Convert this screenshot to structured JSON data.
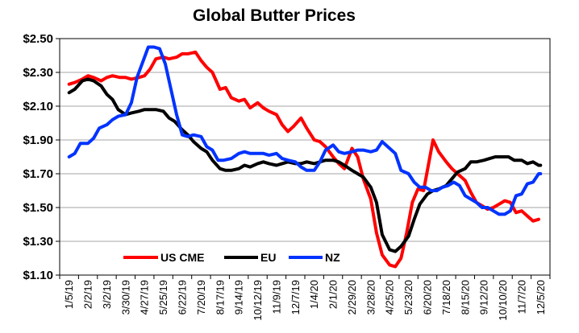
{
  "chart_data": {
    "type": "line",
    "title": "Global Butter Prices",
    "xlabel": "",
    "ylabel": "",
    "ylim": [
      1.1,
      2.5
    ],
    "ytick_values": [
      1.1,
      1.3,
      1.5,
      1.7,
      1.9,
      2.1,
      2.3,
      2.5
    ],
    "ytick_labels": [
      "$1.10",
      "$1.30",
      "$1.50",
      "$1.70",
      "$1.90",
      "$2.10",
      "$2.30",
      "$2.50"
    ],
    "x_labels": [
      "1/5/19",
      "2/2/19",
      "3/2/19",
      "3/30/19",
      "4/27/19",
      "5/25/19",
      "6/22/19",
      "7/20/19",
      "8/17/19",
      "9/14/19",
      "10/12/19",
      "11/9/19",
      "12/7/19",
      "1/4/20",
      "2/1/20",
      "2/29/20",
      "3/28/20",
      "4/25/20",
      "5/23/20",
      "6/20/20",
      "7/18/20",
      "8/15/20",
      "9/12/20",
      "10/10/20",
      "11/7/20",
      "12/5/20"
    ],
    "grid": true,
    "legend": {
      "position": "bottom-left",
      "entries": [
        "US CME",
        "EU",
        "NZ"
      ]
    },
    "series": [
      {
        "name": "US CME",
        "color": "#ff0000",
        "points": [
          [
            0,
            2.23
          ],
          [
            0.3,
            2.24
          ],
          [
            0.7,
            2.26
          ],
          [
            1.0,
            2.28
          ],
          [
            1.3,
            2.27
          ],
          [
            1.7,
            2.25
          ],
          [
            2.0,
            2.27
          ],
          [
            2.3,
            2.28
          ],
          [
            2.7,
            2.27
          ],
          [
            3.0,
            2.27
          ],
          [
            3.3,
            2.26
          ],
          [
            3.7,
            2.27
          ],
          [
            4.0,
            2.28
          ],
          [
            4.3,
            2.32
          ],
          [
            4.6,
            2.38
          ],
          [
            5.0,
            2.39
          ],
          [
            5.3,
            2.38
          ],
          [
            5.7,
            2.39
          ],
          [
            6.0,
            2.41
          ],
          [
            6.3,
            2.41
          ],
          [
            6.7,
            2.42
          ],
          [
            7.0,
            2.37
          ],
          [
            7.3,
            2.33
          ],
          [
            7.6,
            2.3
          ],
          [
            8.0,
            2.2
          ],
          [
            8.3,
            2.21
          ],
          [
            8.6,
            2.15
          ],
          [
            9.0,
            2.13
          ],
          [
            9.3,
            2.14
          ],
          [
            9.6,
            2.09
          ],
          [
            10.0,
            2.12
          ],
          [
            10.3,
            2.09
          ],
          [
            10.6,
            2.07
          ],
          [
            11.0,
            2.05
          ],
          [
            11.3,
            1.99
          ],
          [
            11.6,
            1.95
          ],
          [
            11.9,
            1.98
          ],
          [
            12.3,
            2.03
          ],
          [
            12.6,
            1.97
          ],
          [
            13.0,
            1.9
          ],
          [
            13.3,
            1.89
          ],
          [
            13.6,
            1.86
          ],
          [
            14.0,
            1.8
          ],
          [
            14.3,
            1.76
          ],
          [
            14.6,
            1.73
          ],
          [
            15.0,
            1.85
          ],
          [
            15.3,
            1.8
          ],
          [
            15.6,
            1.67
          ],
          [
            16.0,
            1.55
          ],
          [
            16.3,
            1.35
          ],
          [
            16.6,
            1.22
          ],
          [
            17.0,
            1.16
          ],
          [
            17.3,
            1.15
          ],
          [
            17.6,
            1.2
          ],
          [
            17.9,
            1.35
          ],
          [
            18.2,
            1.53
          ],
          [
            18.5,
            1.61
          ],
          [
            18.8,
            1.6
          ],
          [
            19.0,
            1.72
          ],
          [
            19.3,
            1.9
          ],
          [
            19.6,
            1.83
          ],
          [
            20.0,
            1.77
          ],
          [
            20.3,
            1.73
          ],
          [
            20.6,
            1.7
          ],
          [
            21.0,
            1.66
          ],
          [
            21.3,
            1.59
          ],
          [
            21.6,
            1.53
          ],
          [
            21.9,
            1.51
          ],
          [
            22.2,
            1.49
          ],
          [
            22.5,
            1.5
          ],
          [
            22.8,
            1.52
          ],
          [
            23.1,
            1.54
          ],
          [
            23.4,
            1.53
          ],
          [
            23.7,
            1.47
          ],
          [
            24.0,
            1.48
          ],
          [
            24.3,
            1.45
          ],
          [
            24.6,
            1.42
          ],
          [
            24.9,
            1.43
          ]
        ]
      },
      {
        "name": "EU",
        "color": "#000000",
        "points": [
          [
            0,
            2.18
          ],
          [
            0.3,
            2.2
          ],
          [
            0.7,
            2.25
          ],
          [
            1.0,
            2.26
          ],
          [
            1.3,
            2.25
          ],
          [
            1.7,
            2.22
          ],
          [
            2.0,
            2.17
          ],
          [
            2.3,
            2.14
          ],
          [
            2.6,
            2.08
          ],
          [
            3.0,
            2.05
          ],
          [
            3.3,
            2.06
          ],
          [
            3.7,
            2.07
          ],
          [
            4.0,
            2.08
          ],
          [
            4.3,
            2.08
          ],
          [
            4.6,
            2.08
          ],
          [
            5.0,
            2.07
          ],
          [
            5.3,
            2.03
          ],
          [
            5.6,
            2.01
          ],
          [
            6.0,
            1.96
          ],
          [
            6.3,
            1.93
          ],
          [
            6.6,
            1.89
          ],
          [
            7.0,
            1.85
          ],
          [
            7.3,
            1.83
          ],
          [
            7.6,
            1.78
          ],
          [
            8.0,
            1.73
          ],
          [
            8.3,
            1.72
          ],
          [
            8.6,
            1.72
          ],
          [
            9.0,
            1.73
          ],
          [
            9.3,
            1.75
          ],
          [
            9.6,
            1.74
          ],
          [
            10.0,
            1.76
          ],
          [
            10.3,
            1.77
          ],
          [
            10.6,
            1.76
          ],
          [
            11.0,
            1.75
          ],
          [
            11.3,
            1.76
          ],
          [
            11.6,
            1.77
          ],
          [
            12.0,
            1.76
          ],
          [
            12.3,
            1.76
          ],
          [
            12.6,
            1.77
          ],
          [
            13.0,
            1.76
          ],
          [
            13.3,
            1.77
          ],
          [
            13.6,
            1.78
          ],
          [
            14.0,
            1.78
          ],
          [
            14.3,
            1.77
          ],
          [
            14.6,
            1.75
          ],
          [
            15.0,
            1.72
          ],
          [
            15.3,
            1.7
          ],
          [
            15.6,
            1.68
          ],
          [
            16.0,
            1.62
          ],
          [
            16.3,
            1.53
          ],
          [
            16.6,
            1.34
          ],
          [
            17.0,
            1.25
          ],
          [
            17.3,
            1.24
          ],
          [
            17.6,
            1.27
          ],
          [
            18.0,
            1.33
          ],
          [
            18.3,
            1.43
          ],
          [
            18.6,
            1.52
          ],
          [
            19.0,
            1.58
          ],
          [
            19.3,
            1.6
          ],
          [
            19.6,
            1.61
          ],
          [
            20.0,
            1.63
          ],
          [
            20.3,
            1.67
          ],
          [
            20.6,
            1.71
          ],
          [
            21.0,
            1.73
          ],
          [
            21.3,
            1.77
          ],
          [
            21.6,
            1.77
          ],
          [
            22.0,
            1.78
          ],
          [
            22.3,
            1.79
          ],
          [
            22.6,
            1.8
          ],
          [
            23.0,
            1.8
          ],
          [
            23.3,
            1.8
          ],
          [
            23.6,
            1.78
          ],
          [
            24.0,
            1.78
          ],
          [
            24.3,
            1.76
          ],
          [
            24.6,
            1.77
          ],
          [
            24.9,
            1.75
          ],
          [
            25.0,
            1.75
          ]
        ]
      },
      {
        "name": "NZ",
        "color": "#0033ff",
        "points": [
          [
            0,
            1.8
          ],
          [
            0.3,
            1.82
          ],
          [
            0.6,
            1.88
          ],
          [
            1.0,
            1.88
          ],
          [
            1.3,
            1.91
          ],
          [
            1.6,
            1.97
          ],
          [
            2.0,
            1.99
          ],
          [
            2.3,
            2.02
          ],
          [
            2.6,
            2.04
          ],
          [
            3.0,
            2.05
          ],
          [
            3.3,
            2.12
          ],
          [
            3.6,
            2.27
          ],
          [
            3.9,
            2.36
          ],
          [
            4.2,
            2.45
          ],
          [
            4.5,
            2.45
          ],
          [
            4.8,
            2.44
          ],
          [
            5.1,
            2.35
          ],
          [
            5.4,
            2.2
          ],
          [
            5.7,
            2.05
          ],
          [
            6.0,
            1.93
          ],
          [
            6.3,
            1.92
          ],
          [
            6.6,
            1.93
          ],
          [
            7.0,
            1.92
          ],
          [
            7.3,
            1.86
          ],
          [
            7.6,
            1.84
          ],
          [
            7.9,
            1.78
          ],
          [
            8.2,
            1.78
          ],
          [
            8.6,
            1.79
          ],
          [
            9.0,
            1.82
          ],
          [
            9.3,
            1.83
          ],
          [
            9.6,
            1.82
          ],
          [
            10.0,
            1.82
          ],
          [
            10.3,
            1.82
          ],
          [
            10.6,
            1.81
          ],
          [
            11.0,
            1.82
          ],
          [
            11.3,
            1.79
          ],
          [
            11.6,
            1.78
          ],
          [
            12.0,
            1.77
          ],
          [
            12.3,
            1.74
          ],
          [
            12.6,
            1.72
          ],
          [
            13.0,
            1.72
          ],
          [
            13.3,
            1.77
          ],
          [
            13.6,
            1.84
          ],
          [
            14.0,
            1.87
          ],
          [
            14.3,
            1.83
          ],
          [
            14.6,
            1.82
          ],
          [
            15.0,
            1.83
          ],
          [
            15.3,
            1.84
          ],
          [
            15.6,
            1.84
          ],
          [
            16.0,
            1.83
          ],
          [
            16.3,
            1.84
          ],
          [
            16.6,
            1.89
          ],
          [
            17.0,
            1.85
          ],
          [
            17.3,
            1.82
          ],
          [
            17.6,
            1.72
          ],
          [
            18.0,
            1.7
          ],
          [
            18.3,
            1.65
          ],
          [
            18.6,
            1.62
          ],
          [
            18.9,
            1.62
          ],
          [
            19.2,
            1.6
          ],
          [
            19.5,
            1.6
          ],
          [
            19.8,
            1.62
          ],
          [
            20.1,
            1.63
          ],
          [
            20.4,
            1.65
          ],
          [
            20.7,
            1.63
          ],
          [
            21.0,
            1.57
          ],
          [
            21.3,
            1.55
          ],
          [
            21.6,
            1.53
          ],
          [
            21.9,
            1.5
          ],
          [
            22.2,
            1.5
          ],
          [
            22.5,
            1.48
          ],
          [
            22.8,
            1.46
          ],
          [
            23.1,
            1.46
          ],
          [
            23.4,
            1.48
          ],
          [
            23.7,
            1.57
          ],
          [
            24.0,
            1.58
          ],
          [
            24.3,
            1.64
          ],
          [
            24.6,
            1.65
          ],
          [
            24.9,
            1.7
          ],
          [
            25.0,
            1.7
          ]
        ]
      }
    ]
  }
}
